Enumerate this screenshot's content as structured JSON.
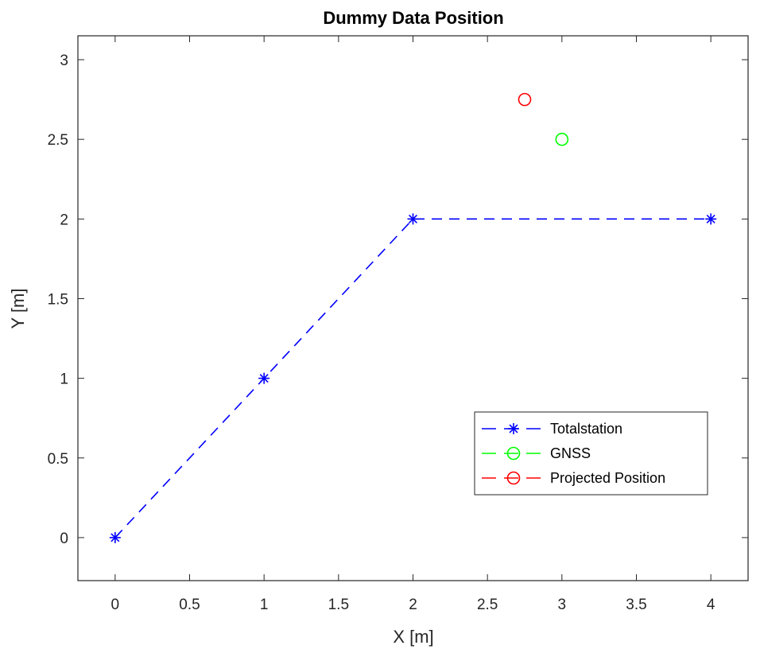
{
  "chart_data": {
    "type": "line",
    "title": "Dummy Data Position",
    "xlabel": "X [m]",
    "ylabel": "Y [m]",
    "xlim": [
      -0.25,
      4.25
    ],
    "ylim": [
      -0.27,
      3.15
    ],
    "xticks": [
      0,
      0.5,
      1,
      1.5,
      2,
      2.5,
      3,
      3.5,
      4
    ],
    "xtick_labels": [
      "0",
      "0.5",
      "1",
      "1.5",
      "2",
      "2.5",
      "3",
      "3.5",
      "4"
    ],
    "yticks": [
      0,
      0.5,
      1,
      1.5,
      2,
      2.5,
      3
    ],
    "ytick_labels": [
      "0",
      "0.5",
      "1",
      "1.5",
      "2",
      "2.5",
      "3"
    ],
    "grid": false,
    "legend_position": "lower-right",
    "series": [
      {
        "name": "Totalstation",
        "x": [
          0,
          1,
          2,
          4
        ],
        "y": [
          0,
          1,
          2,
          2
        ],
        "color": "#0000ff",
        "line_style": "dashed",
        "marker": "asterisk"
      },
      {
        "name": "GNSS",
        "x": [
          3
        ],
        "y": [
          2.5
        ],
        "color": "#00ff00",
        "line_style": "dashed",
        "marker": "circle"
      },
      {
        "name": "Projected Position",
        "x": [
          2.75
        ],
        "y": [
          2.75
        ],
        "color": "#ff0000",
        "line_style": "dashed",
        "marker": "circle"
      }
    ]
  }
}
